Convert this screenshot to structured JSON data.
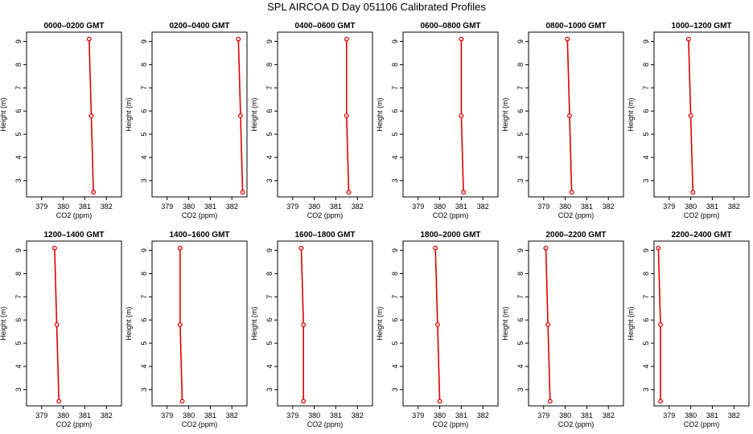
{
  "title": "SPL AIRCOA D  Day 051106  Calibrated Profiles",
  "style": {
    "line_color": "#e00000",
    "point_color": "#e00000",
    "axis_color": "#000000"
  },
  "chart_data": [
    {
      "type": "line",
      "title": "0000–0200 GMT",
      "xlabel": "CO2 (ppm)",
      "ylabel": "Height (m)",
      "xlim": [
        378.3,
        382.7
      ],
      "ylim": [
        2.3,
        9.4
      ],
      "xticks": [
        379,
        380,
        381,
        382
      ],
      "yticks": [
        3,
        4,
        5,
        6,
        7,
        8,
        9
      ],
      "x": [
        381.2,
        381.3,
        381.4
      ],
      "y": [
        9.1,
        5.8,
        2.5
      ]
    },
    {
      "type": "line",
      "title": "0200–0400 GMT",
      "xlabel": "CO2 (ppm)",
      "ylabel": "Height (m)",
      "xlim": [
        378.3,
        382.7
      ],
      "ylim": [
        2.3,
        9.4
      ],
      "xticks": [
        379,
        380,
        381,
        382
      ],
      "yticks": [
        3,
        4,
        5,
        6,
        7,
        8,
        9
      ],
      "x": [
        382.3,
        382.4,
        382.5
      ],
      "y": [
        9.1,
        5.8,
        2.5
      ]
    },
    {
      "type": "line",
      "title": "0400–0600 GMT",
      "xlabel": "CO2 (ppm)",
      "ylabel": "Height (m)",
      "xlim": [
        378.3,
        382.7
      ],
      "ylim": [
        2.3,
        9.4
      ],
      "xticks": [
        379,
        380,
        381,
        382
      ],
      "yticks": [
        3,
        4,
        5,
        6,
        7,
        8,
        9
      ],
      "x": [
        381.5,
        381.5,
        381.6
      ],
      "y": [
        9.1,
        5.8,
        2.5
      ]
    },
    {
      "type": "line",
      "title": "0600–0800 GMT",
      "xlabel": "CO2 (ppm)",
      "ylabel": "Height (m)",
      "xlim": [
        378.3,
        382.7
      ],
      "ylim": [
        2.3,
        9.4
      ],
      "xticks": [
        379,
        380,
        381,
        382
      ],
      "yticks": [
        3,
        4,
        5,
        6,
        7,
        8,
        9
      ],
      "x": [
        381.0,
        381.0,
        381.1
      ],
      "y": [
        9.1,
        5.8,
        2.5
      ]
    },
    {
      "type": "line",
      "title": "0800–1000 GMT",
      "xlabel": "CO2 (ppm)",
      "ylabel": "Height (m)",
      "xlim": [
        378.3,
        382.7
      ],
      "ylim": [
        2.3,
        9.4
      ],
      "xticks": [
        379,
        380,
        381,
        382
      ],
      "yticks": [
        3,
        4,
        5,
        6,
        7,
        8,
        9
      ],
      "x": [
        380.1,
        380.2,
        380.3
      ],
      "y": [
        9.1,
        5.8,
        2.5
      ]
    },
    {
      "type": "line",
      "title": "1000–1200 GMT",
      "xlabel": "CO2 (ppm)",
      "ylabel": "Height (m)",
      "xlim": [
        378.3,
        382.7
      ],
      "ylim": [
        2.3,
        9.4
      ],
      "xticks": [
        379,
        380,
        381,
        382
      ],
      "yticks": [
        3,
        4,
        5,
        6,
        7,
        8,
        9
      ],
      "x": [
        379.9,
        380.0,
        380.1
      ],
      "y": [
        9.1,
        5.8,
        2.5
      ]
    },
    {
      "type": "line",
      "title": "1200–1400 GMT",
      "xlabel": "CO2 (ppm)",
      "ylabel": "Height (m)",
      "xlim": [
        378.3,
        382.7
      ],
      "ylim": [
        2.3,
        9.4
      ],
      "xticks": [
        379,
        380,
        381,
        382
      ],
      "yticks": [
        3,
        4,
        5,
        6,
        7,
        8,
        9
      ],
      "x": [
        379.6,
        379.7,
        379.8
      ],
      "y": [
        9.1,
        5.8,
        2.5
      ]
    },
    {
      "type": "line",
      "title": "1400–1600 GMT",
      "xlabel": "CO2 (ppm)",
      "ylabel": "Height (m)",
      "xlim": [
        378.3,
        382.7
      ],
      "ylim": [
        2.3,
        9.4
      ],
      "xticks": [
        379,
        380,
        381,
        382
      ],
      "yticks": [
        3,
        4,
        5,
        6,
        7,
        8,
        9
      ],
      "x": [
        379.6,
        379.6,
        379.7
      ],
      "y": [
        9.1,
        5.8,
        2.5
      ]
    },
    {
      "type": "line",
      "title": "1600–1800 GMT",
      "xlabel": "CO2 (ppm)",
      "ylabel": "Height (m)",
      "xlim": [
        378.3,
        382.7
      ],
      "ylim": [
        2.3,
        9.4
      ],
      "xticks": [
        379,
        380,
        381,
        382
      ],
      "yticks": [
        3,
        4,
        5,
        6,
        7,
        8,
        9
      ],
      "x": [
        379.4,
        379.5,
        379.5
      ],
      "y": [
        9.1,
        5.8,
        2.5
      ]
    },
    {
      "type": "line",
      "title": "1800–2000 GMT",
      "xlabel": "CO2 (ppm)",
      "ylabel": "Height (m)",
      "xlim": [
        378.3,
        382.7
      ],
      "ylim": [
        2.3,
        9.4
      ],
      "xticks": [
        379,
        380,
        381,
        382
      ],
      "yticks": [
        3,
        4,
        5,
        6,
        7,
        8,
        9
      ],
      "x": [
        379.8,
        379.9,
        380.0
      ],
      "y": [
        9.1,
        5.8,
        2.5
      ]
    },
    {
      "type": "line",
      "title": "2000–2200 GMT",
      "xlabel": "CO2 (ppm)",
      "ylabel": "Height (m)",
      "xlim": [
        378.3,
        382.7
      ],
      "ylim": [
        2.3,
        9.4
      ],
      "xticks": [
        379,
        380,
        381,
        382
      ],
      "yticks": [
        3,
        4,
        5,
        6,
        7,
        8,
        9
      ],
      "x": [
        379.1,
        379.2,
        379.3
      ],
      "y": [
        9.1,
        5.8,
        2.5
      ]
    },
    {
      "type": "line",
      "title": "2200–2400 GMT",
      "xlabel": "CO2 (ppm)",
      "ylabel": "Height (m)",
      "xlim": [
        378.3,
        382.7
      ],
      "ylim": [
        2.3,
        9.4
      ],
      "xticks": [
        379,
        380,
        381,
        382
      ],
      "yticks": [
        3,
        4,
        5,
        6,
        7,
        8,
        9
      ],
      "x": [
        378.5,
        378.6,
        378.6
      ],
      "y": [
        9.1,
        5.8,
        2.5
      ]
    }
  ]
}
